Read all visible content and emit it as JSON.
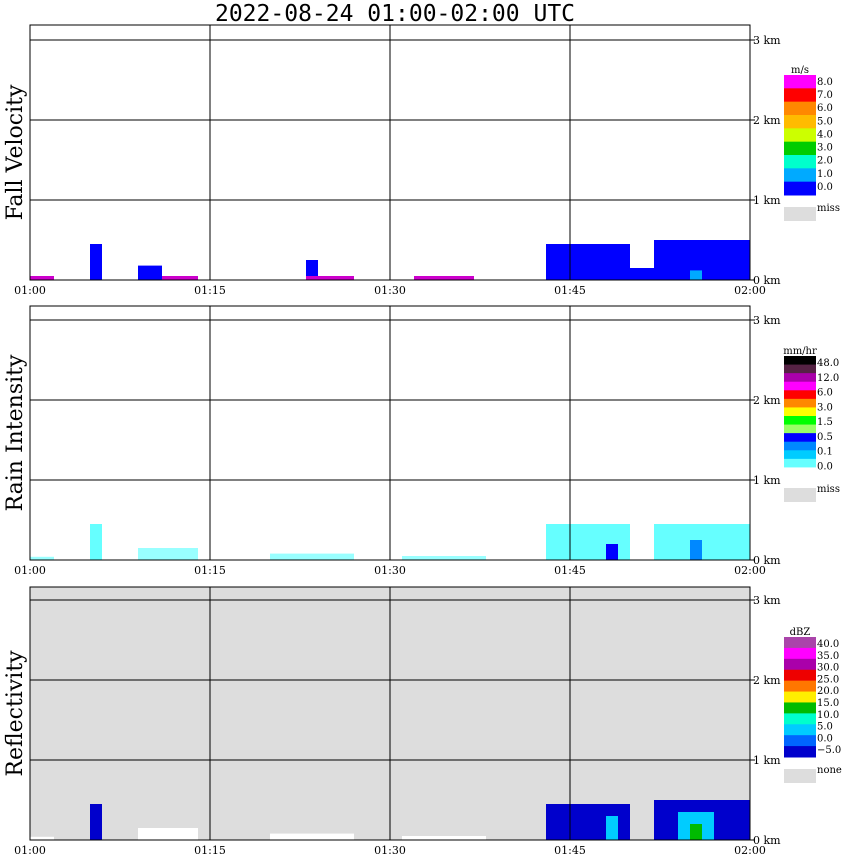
{
  "title": "2022-08-24   01:00-02:00 UTC",
  "chart_data": [
    {
      "type": "heatmap",
      "ylabel": "Fall Velocity",
      "x_ticks": [
        "01:00",
        "01:15",
        "01:30",
        "01:45",
        "02:00"
      ],
      "y_ticks": [
        "0 km",
        "1 km",
        "2 km",
        "3 km"
      ],
      "xlim": [
        "01:00",
        "02:00"
      ],
      "ylim_km": [
        0,
        3.2
      ],
      "grid": true,
      "background": "#ffffff",
      "legend": {
        "unit": "m/s",
        "labels": [
          "8.0",
          "7.0",
          "6.0",
          "5.0",
          "4.0",
          "3.0",
          "2.0",
          "1.0",
          "0.0",
          "miss"
        ],
        "colors": [
          "#ff00ff",
          "#ff0000",
          "#ff8800",
          "#ffbb00",
          "#ccff00",
          "#00cc00",
          "#00ffcc",
          "#00aaff",
          "#0000ff",
          "#dddddd"
        ]
      },
      "echoes": [
        {
          "t0": "01:00",
          "t1": "01:02",
          "top_km": 0.05,
          "color": "#cc00cc"
        },
        {
          "t0": "01:05",
          "t1": "01:06",
          "top_km": 0.45,
          "color": "#0000ff"
        },
        {
          "t0": "01:09",
          "t1": "01:11",
          "top_km": 0.18,
          "color": "#0000ff"
        },
        {
          "t0": "01:11",
          "t1": "01:14",
          "top_km": 0.05,
          "color": "#cc00cc"
        },
        {
          "t0": "01:23",
          "t1": "01:24",
          "top_km": 0.25,
          "color": "#0000ff"
        },
        {
          "t0": "01:23",
          "t1": "01:27",
          "top_km": 0.05,
          "color": "#cc00cc"
        },
        {
          "t0": "01:32",
          "t1": "01:37",
          "top_km": 0.05,
          "color": "#cc00cc"
        },
        {
          "t0": "01:43",
          "t1": "01:50",
          "top_km": 0.45,
          "color": "#0000ff"
        },
        {
          "t0": "01:50",
          "t1": "01:52",
          "top_km": 0.15,
          "color": "#0000ff"
        },
        {
          "t0": "01:52",
          "t1": "02:00",
          "top_km": 0.5,
          "color": "#0000ff"
        },
        {
          "t0": "01:55",
          "t1": "01:56",
          "top_km": 0.12,
          "color": "#00aaff"
        }
      ]
    },
    {
      "type": "heatmap",
      "ylabel": "Rain Intensity",
      "x_ticks": [
        "01:00",
        "01:15",
        "01:30",
        "01:45",
        "02:00"
      ],
      "y_ticks": [
        "0 km",
        "1 km",
        "2 km",
        "3 km"
      ],
      "xlim": [
        "01:00",
        "02:00"
      ],
      "ylim_km": [
        0,
        3.2
      ],
      "grid": true,
      "background": "#ffffff",
      "legend": {
        "unit": "mm/hr",
        "labels": [
          "48.0",
          "12.0",
          "6.0",
          "3.0",
          "1.5",
          "0.5",
          "0.1",
          "0.0",
          "miss"
        ],
        "colors": [
          "#000000",
          "#552244",
          "#aa00aa",
          "#ff00ff",
          "#ff0000",
          "#ff8800",
          "#ffff00",
          "#00ff00",
          "#99ff66",
          "#0000ff",
          "#0088ff",
          "#00ccff",
          "#66ffff",
          "#ffffff",
          "#dddddd"
        ]
      },
      "echoes": [
        {
          "t0": "01:00",
          "t1": "01:02",
          "top_km": 0.04,
          "color": "#99ffff"
        },
        {
          "t0": "01:05",
          "t1": "01:06",
          "top_km": 0.45,
          "color": "#66ffff"
        },
        {
          "t0": "01:09",
          "t1": "01:14",
          "top_km": 0.15,
          "color": "#99ffff"
        },
        {
          "t0": "01:20",
          "t1": "01:27",
          "top_km": 0.08,
          "color": "#99ffff"
        },
        {
          "t0": "01:31",
          "t1": "01:38",
          "top_km": 0.05,
          "color": "#99ffff"
        },
        {
          "t0": "01:43",
          "t1": "01:50",
          "top_km": 0.45,
          "color": "#66ffff"
        },
        {
          "t0": "01:48",
          "t1": "01:49",
          "top_km": 0.2,
          "color": "#0000ff"
        },
        {
          "t0": "01:52",
          "t1": "02:00",
          "top_km": 0.45,
          "color": "#66ffff"
        },
        {
          "t0": "01:55",
          "t1": "01:56",
          "top_km": 0.25,
          "color": "#0088ff"
        }
      ]
    },
    {
      "type": "heatmap",
      "ylabel": "Reflectivity",
      "x_ticks": [
        "01:00",
        "01:15",
        "01:30",
        "01:45",
        "02:00"
      ],
      "y_ticks": [
        "0 km",
        "1 km",
        "2 km",
        "3 km"
      ],
      "xlim": [
        "01:00",
        "02:00"
      ],
      "ylim_km": [
        0,
        3.2
      ],
      "grid": true,
      "background": "#dddddd",
      "legend": {
        "unit": "dBZ",
        "labels": [
          "40.0",
          "35.0",
          "30.0",
          "25.0",
          "20.0",
          "15.0",
          "10.0",
          "5.0",
          "0.0",
          "−5.0",
          "none"
        ],
        "colors": [
          "#aa44aa",
          "#ff00ff",
          "#aa00aa",
          "#ee0000",
          "#ff7700",
          "#ffee00",
          "#00bb00",
          "#00ffcc",
          "#00ccff",
          "#0066ff",
          "#0000cc",
          "#dddddd"
        ]
      },
      "echoes": [
        {
          "t0": "01:00",
          "t1": "01:02",
          "top_km": 0.04,
          "color": "#ffffff"
        },
        {
          "t0": "01:05",
          "t1": "01:06",
          "top_km": 0.45,
          "color": "#0000cc"
        },
        {
          "t0": "01:09",
          "t1": "01:14",
          "top_km": 0.15,
          "color": "#ffffff"
        },
        {
          "t0": "01:20",
          "t1": "01:27",
          "top_km": 0.08,
          "color": "#ffffff"
        },
        {
          "t0": "01:31",
          "t1": "01:38",
          "top_km": 0.05,
          "color": "#ffffff"
        },
        {
          "t0": "01:43",
          "t1": "01:50",
          "top_km": 0.45,
          "color": "#0000cc"
        },
        {
          "t0": "01:48",
          "t1": "01:49",
          "top_km": 0.3,
          "color": "#00ccff"
        },
        {
          "t0": "01:52",
          "t1": "02:00",
          "top_km": 0.5,
          "color": "#0000cc"
        },
        {
          "t0": "01:54",
          "t1": "01:57",
          "top_km": 0.35,
          "color": "#00ccff"
        },
        {
          "t0": "01:55",
          "t1": "01:56",
          "top_km": 0.2,
          "color": "#00bb00"
        }
      ]
    }
  ]
}
